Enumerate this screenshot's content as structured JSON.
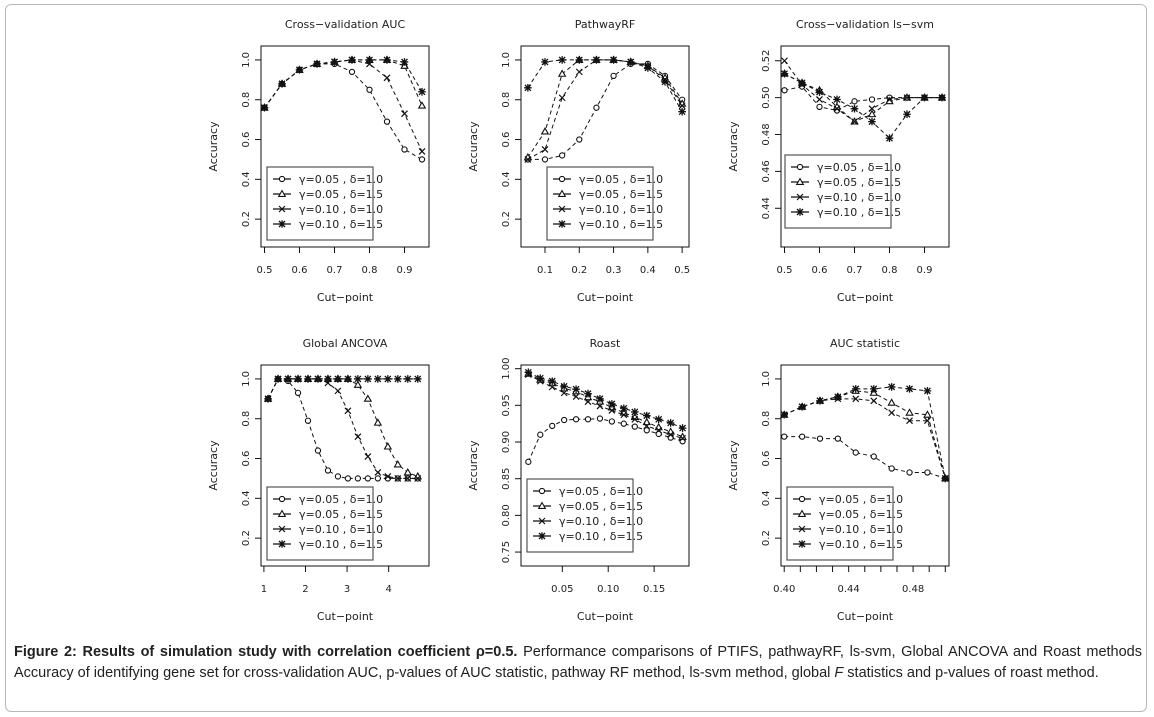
{
  "caption": {
    "bold": "Figure 2: Results of simulation study with correlation coefficient ρ=0.5.",
    "text1": " Performance comparisons of PTIFS, pathwayRF, ls-svm, Global ANCOVA and Roast methods Accuracy of identifying gene set for cross-validation AUC, p-values of AUC statistic, pathway RF method, ls-svm method, global ",
    "italic": "F",
    "text2": " statistics and p-values of roast method."
  },
  "legend_labels": [
    "γ=0.05 , δ=1.0",
    "γ=0.05 , δ=1.5",
    "γ=0.10 , δ=1.0",
    "γ=0.10 , δ=1.5"
  ],
  "legend_markers": [
    "circle",
    "triangle",
    "cross",
    "star"
  ],
  "chart_data": [
    {
      "type": "line",
      "title": "Cross−validation AUC",
      "xlabel": "Cut−point",
      "ylabel": "Accuracy",
      "xlim": [
        0.49,
        0.97
      ],
      "ylim": [
        0.06,
        1.07
      ],
      "xticks": [
        0.5,
        0.6,
        0.7,
        0.8,
        0.9
      ],
      "xtick_labels": [
        "0.5",
        "0.6",
        "0.7",
        "0.8",
        "0.9"
      ],
      "yticks": [
        0.2,
        0.4,
        0.6,
        0.8,
        1.0
      ],
      "ytick_labels": [
        "0.2",
        "0.4",
        "0.6",
        "0.8",
        "1.0"
      ],
      "legend": "bottom-left",
      "x": [
        0.5,
        0.55,
        0.6,
        0.65,
        0.7,
        0.75,
        0.8,
        0.85,
        0.9,
        0.95
      ],
      "series": [
        {
          "name": "γ=0.05 , δ=1.0",
          "values": [
            0.76,
            0.88,
            0.95,
            0.98,
            0.98,
            0.94,
            0.85,
            0.69,
            0.55,
            0.5
          ]
        },
        {
          "name": "γ=0.05 , δ=1.5",
          "values": [
            0.76,
            0.88,
            0.95,
            0.98,
            0.99,
            1.0,
            1.0,
            1.0,
            0.97,
            0.77
          ]
        },
        {
          "name": "γ=0.10 , δ=1.0",
          "values": [
            0.76,
            0.88,
            0.95,
            0.98,
            0.99,
            1.0,
            0.98,
            0.91,
            0.73,
            0.54
          ]
        },
        {
          "name": "γ=0.10 , δ=1.5",
          "values": [
            0.76,
            0.88,
            0.95,
            0.98,
            0.99,
            1.0,
            1.0,
            1.0,
            0.99,
            0.84
          ]
        }
      ]
    },
    {
      "type": "line",
      "title": "PathwayRF",
      "xlabel": "Cut−point",
      "ylabel": "Accuracy",
      "xlim": [
        0.03,
        0.52
      ],
      "ylim": [
        0.06,
        1.07
      ],
      "xticks": [
        0.1,
        0.2,
        0.3,
        0.4,
        0.5
      ],
      "xtick_labels": [
        "0.1",
        "0.2",
        "0.3",
        "0.4",
        "0.5"
      ],
      "yticks": [
        0.2,
        0.4,
        0.6,
        0.8,
        1.0
      ],
      "ytick_labels": [
        "0.2",
        "0.4",
        "0.6",
        "0.8",
        "1.0"
      ],
      "legend": "bottom-center",
      "x": [
        0.05,
        0.1,
        0.15,
        0.2,
        0.25,
        0.3,
        0.35,
        0.4,
        0.45,
        0.5
      ],
      "series": [
        {
          "name": "γ=0.05 , δ=1.0",
          "values": [
            0.5,
            0.5,
            0.52,
            0.6,
            0.76,
            0.92,
            0.98,
            0.98,
            0.92,
            0.8
          ]
        },
        {
          "name": "γ=0.05 , δ=1.5",
          "values": [
            0.51,
            0.64,
            0.93,
            1.0,
            1.0,
            1.0,
            0.99,
            0.97,
            0.91,
            0.78
          ]
        },
        {
          "name": "γ=0.10 , δ=1.0",
          "values": [
            0.5,
            0.55,
            0.81,
            0.94,
            1.0,
            1.0,
            0.99,
            0.97,
            0.9,
            0.77
          ]
        },
        {
          "name": "γ=0.10 , δ=1.5",
          "values": [
            0.86,
            0.99,
            1.0,
            1.0,
            1.0,
            1.0,
            0.99,
            0.96,
            0.89,
            0.74
          ]
        }
      ]
    },
    {
      "type": "line",
      "title": "Cross−validation ls−svm",
      "xlabel": "Cut−point",
      "ylabel": "Accuracy",
      "xlim": [
        0.49,
        0.97
      ],
      "ylim": [
        0.419,
        0.528
      ],
      "xticks": [
        0.5,
        0.6,
        0.7,
        0.8,
        0.9
      ],
      "xtick_labels": [
        "0.5",
        "0.6",
        "0.7",
        "0.8",
        "0.9"
      ],
      "yticks": [
        0.44,
        0.46,
        0.48,
        0.5,
        0.52
      ],
      "ytick_labels": [
        "0.44",
        "0.46",
        "0.48",
        "0.50",
        "0.52"
      ],
      "legend": "bottom-left",
      "x": [
        0.5,
        0.55,
        0.6,
        0.65,
        0.7,
        0.75,
        0.8,
        0.85,
        0.9,
        0.95
      ],
      "series": [
        {
          "name": "γ=0.05 , δ=1.0",
          "values": [
            0.504,
            0.506,
            0.495,
            0.493,
            0.498,
            0.499,
            0.5,
            0.5,
            0.5,
            0.5
          ]
        },
        {
          "name": "γ=0.05 , δ=1.5",
          "values": [
            0.513,
            0.508,
            0.504,
            0.495,
            0.487,
            0.491,
            0.498,
            0.5,
            0.5,
            0.5
          ]
        },
        {
          "name": "γ=0.10 , δ=1.0",
          "values": [
            0.52,
            0.507,
            0.499,
            0.494,
            0.487,
            0.494,
            0.499,
            0.5,
            0.5,
            0.5
          ]
        },
        {
          "name": "γ=0.10 , δ=1.5",
          "values": [
            0.513,
            0.508,
            0.503,
            0.499,
            0.494,
            0.487,
            0.478,
            0.491,
            0.5,
            0.5
          ]
        }
      ]
    },
    {
      "type": "line",
      "title": "Global ANCOVA",
      "xlabel": "Cut−point",
      "ylabel": "Accuracy",
      "xlim": [
        0.93,
        4.97
      ],
      "ylim": [
        0.06,
        1.07
      ],
      "xticks": [
        1,
        2,
        3,
        4
      ],
      "xtick_labels": [
        "1",
        "2",
        "3",
        "4"
      ],
      "yticks": [
        0.2,
        0.4,
        0.6,
        0.8,
        1.0
      ],
      "ytick_labels": [
        "0.2",
        "0.4",
        "0.6",
        "0.8",
        "1.0"
      ],
      "legend": "bottom-left",
      "x": [
        1.1,
        1.34,
        1.58,
        1.82,
        2.06,
        2.3,
        2.54,
        2.78,
        3.02,
        3.26,
        3.5,
        3.74,
        3.98,
        4.22,
        4.46,
        4.7
      ],
      "series": [
        {
          "name": "γ=0.05 , δ=1.0",
          "values": [
            0.9,
            1.0,
            0.99,
            0.93,
            0.79,
            0.64,
            0.54,
            0.51,
            0.5,
            0.5,
            0.5,
            0.5,
            0.5,
            0.5,
            0.5,
            0.5
          ]
        },
        {
          "name": "γ=0.05 , δ=1.5",
          "values": [
            0.9,
            1.0,
            1.0,
            1.0,
            1.0,
            1.0,
            1.0,
            1.0,
            1.0,
            0.97,
            0.9,
            0.78,
            0.66,
            0.57,
            0.53,
            0.51
          ]
        },
        {
          "name": "γ=0.10 , δ=1.0",
          "values": [
            0.9,
            1.0,
            1.0,
            1.0,
            1.0,
            1.0,
            0.98,
            0.94,
            0.84,
            0.71,
            0.61,
            0.53,
            0.51,
            0.5,
            0.5,
            0.5
          ]
        },
        {
          "name": "γ=0.10 , δ=1.5",
          "values": [
            0.9,
            1.0,
            1.0,
            1.0,
            1.0,
            1.0,
            1.0,
            1.0,
            1.0,
            1.0,
            1.0,
            1.0,
            1.0,
            1.0,
            1.0,
            1.0
          ]
        }
      ]
    },
    {
      "type": "line",
      "title": "Roast",
      "xlabel": "Cut−point",
      "ylabel": "Accuracy",
      "xlim": [
        0.005,
        0.188
      ],
      "ylim": [
        0.731,
        1.005
      ],
      "xticks": [
        0.05,
        0.1,
        0.15
      ],
      "xtick_labels": [
        "0.05",
        "0.10",
        "0.15"
      ],
      "yticks": [
        0.75,
        0.8,
        0.85,
        0.9,
        0.95,
        1.0
      ],
      "ytick_labels": [
        "0.75",
        "0.80",
        "0.85",
        "0.90",
        "0.95",
        "1.00"
      ],
      "legend": "bottom-left",
      "x": [
        0.013,
        0.026,
        0.039,
        0.052,
        0.065,
        0.078,
        0.091,
        0.104,
        0.117,
        0.129,
        0.142,
        0.155,
        0.168,
        0.181
      ],
      "series": [
        {
          "name": "γ=0.05 , δ=1.0",
          "values": [
            0.873,
            0.91,
            0.922,
            0.93,
            0.931,
            0.931,
            0.932,
            0.928,
            0.925,
            0.921,
            0.916,
            0.911,
            0.906,
            0.901
          ]
        },
        {
          "name": "γ=0.05 , δ=1.5",
          "values": [
            0.993,
            0.985,
            0.98,
            0.973,
            0.969,
            0.961,
            0.955,
            0.947,
            0.94,
            0.934,
            0.927,
            0.92,
            0.914,
            0.907
          ]
        },
        {
          "name": "γ=0.10 , δ=1.0",
          "values": [
            0.992,
            0.983,
            0.975,
            0.967,
            0.962,
            0.955,
            0.949,
            0.943,
            0.937,
            0.931,
            0.922,
            0.916,
            0.91,
            0.905
          ]
        },
        {
          "name": "γ=0.10 , δ=1.5",
          "values": [
            0.995,
            0.987,
            0.983,
            0.976,
            0.972,
            0.966,
            0.959,
            0.952,
            0.946,
            0.941,
            0.936,
            0.931,
            0.926,
            0.919
          ]
        }
      ]
    },
    {
      "type": "line",
      "title": "AUC statistic",
      "xlabel": "Cut−point",
      "ylabel": "Accuracy",
      "xlim": [
        0.398,
        0.5023
      ],
      "ylim": [
        0.06,
        1.07
      ],
      "xticks": [
        0.4,
        0.41,
        0.42,
        0.43,
        0.44,
        0.45,
        0.46,
        0.47,
        0.48,
        0.49,
        0.5
      ],
      "xtick_labels": [
        "0.40",
        "",
        "",
        "",
        "0.44",
        "",
        "",
        "",
        "0.48",
        "",
        ""
      ],
      "yticks": [
        0.2,
        0.4,
        0.6,
        0.8,
        1.0
      ],
      "ytick_labels": [
        "0.2",
        "0.4",
        "0.6",
        "0.8",
        "1.0"
      ],
      "legend": "bottom-left",
      "x": [
        0.4,
        0.4111,
        0.4222,
        0.4333,
        0.4444,
        0.4556,
        0.4667,
        0.4778,
        0.4889,
        0.5
      ],
      "series": [
        {
          "name": "γ=0.05 , δ=1.0",
          "values": [
            0.71,
            0.71,
            0.7,
            0.7,
            0.63,
            0.61,
            0.55,
            0.53,
            0.53,
            0.5
          ]
        },
        {
          "name": "γ=0.05 , δ=1.5",
          "values": [
            0.82,
            0.86,
            0.89,
            0.91,
            0.94,
            0.93,
            0.88,
            0.83,
            0.82,
            0.5
          ]
        },
        {
          "name": "γ=0.10 , δ=1.0",
          "values": [
            0.82,
            0.86,
            0.89,
            0.9,
            0.9,
            0.89,
            0.83,
            0.79,
            0.79,
            0.5
          ]
        },
        {
          "name": "γ=0.10 , δ=1.5",
          "values": [
            0.82,
            0.86,
            0.89,
            0.91,
            0.95,
            0.95,
            0.96,
            0.95,
            0.94,
            0.5
          ]
        }
      ]
    }
  ]
}
